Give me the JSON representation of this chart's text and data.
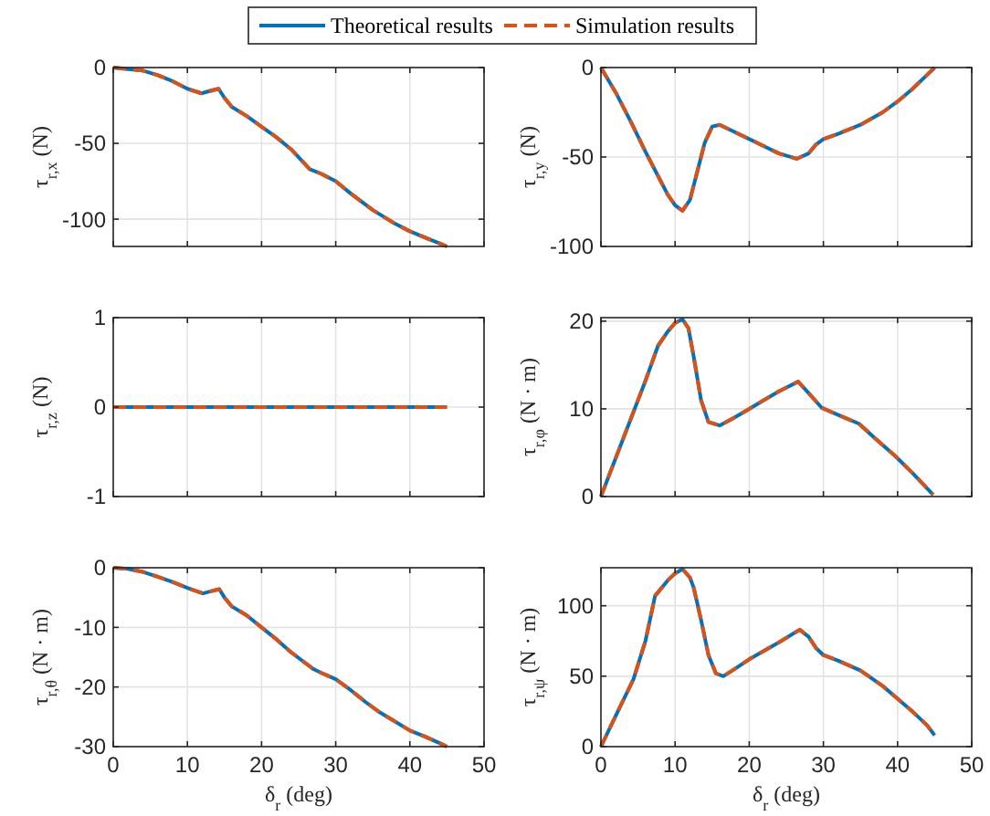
{
  "chart_data": [
    {
      "type": "line",
      "ylabel": "τ$_{r,x}$ (N)",
      "legend": "top",
      "grid": true,
      "tick_labels": "y",
      "xlim": [
        0,
        50
      ],
      "xticks": [
        0,
        10,
        20,
        30,
        40,
        50
      ],
      "ylim": [
        -118,
        0
      ],
      "yticks": [
        -100,
        -50,
        0
      ],
      "marker": "none",
      "x": [
        0,
        2,
        4,
        6,
        8,
        10,
        11.9,
        13,
        14.2,
        15,
        16,
        18,
        20,
        22,
        24,
        26.5,
        28,
        30,
        32,
        35,
        38,
        40,
        42,
        44,
        45
      ],
      "series": [
        {
          "name": "Theoretical results",
          "color": "#0072bd",
          "line_style": "solid",
          "values": [
            0,
            -1,
            -2,
            -5,
            -9,
            -14,
            -17,
            -15.5,
            -14,
            -20,
            -26,
            -32,
            -39,
            -46,
            -54,
            -67,
            -70,
            -75,
            -83,
            -94,
            -103,
            -108,
            -112,
            -116,
            -118
          ]
        },
        {
          "name": "Simulation results",
          "color": "#d95319",
          "line_style": "dashed",
          "values": [
            0,
            -1,
            -2,
            -5,
            -9,
            -14,
            -17,
            -15.5,
            -14,
            -20,
            -26,
            -32,
            -39,
            -46,
            -54,
            -67,
            -70,
            -75,
            -83,
            -94,
            -103,
            -108,
            -112,
            -116,
            -118
          ]
        }
      ]
    },
    {
      "type": "line",
      "ylabel": "τ$_{r,y}$ (N)",
      "grid": true,
      "tick_labels": "y",
      "xlim": [
        0,
        50
      ],
      "xticks": [
        0,
        10,
        20,
        30,
        40,
        50
      ],
      "ylim": [
        -100,
        0
      ],
      "yticks": [
        -100,
        -50,
        0
      ],
      "marker": "none",
      "x": [
        0,
        2,
        4,
        6,
        8,
        9,
        10,
        11,
        12,
        13,
        14,
        15,
        16,
        18,
        20,
        22,
        24,
        26.4,
        28,
        29,
        30,
        32,
        35,
        38,
        40,
        42,
        44,
        45
      ],
      "series": [
        {
          "color": "#0072bd",
          "line_style": "solid",
          "values": [
            0,
            -14,
            -30,
            -47,
            -63,
            -71,
            -77,
            -80,
            -74,
            -58,
            -42,
            -33,
            -32,
            -36,
            -40,
            -44,
            -48,
            -51,
            -48,
            -43,
            -40,
            -37,
            -32,
            -25,
            -19,
            -12,
            -4,
            0
          ]
        },
        {
          "color": "#d95319",
          "line_style": "dashed",
          "values": [
            0,
            -14,
            -30,
            -47,
            -63,
            -71,
            -77,
            -80,
            -74,
            -58,
            -42,
            -33,
            -32,
            -36,
            -40,
            -44,
            -48,
            -51,
            -48,
            -43,
            -40,
            -37,
            -32,
            -25,
            -19,
            -12,
            -4,
            0
          ]
        }
      ]
    },
    {
      "type": "line",
      "ylabel": "τ$_{r,z}$ (N)",
      "grid": true,
      "tick_labels": "y",
      "xlim": [
        0,
        50
      ],
      "xticks": [
        0,
        10,
        20,
        30,
        40,
        50
      ],
      "ylim": [
        -1,
        1
      ],
      "yticks": [
        -1,
        0,
        1
      ],
      "marker": "none",
      "x": [
        0,
        45
      ],
      "series": [
        {
          "color": "#0072bd",
          "line_style": "solid",
          "values": [
            0,
            0
          ]
        },
        {
          "color": "#d95319",
          "line_style": "dashed",
          "values": [
            0,
            0
          ]
        }
      ]
    },
    {
      "type": "line",
      "ylabel": "τ$_{r,φ}$ (N · m)",
      "grid": true,
      "tick_labels": "y",
      "xlim": [
        0,
        50
      ],
      "xticks": [
        0,
        10,
        20,
        30,
        40,
        50
      ],
      "ylim": [
        0,
        20.4
      ],
      "yticks": [
        0,
        10,
        20
      ],
      "marker": "none",
      "x": [
        0,
        2,
        4,
        6,
        7.7,
        9,
        10,
        11,
        11.8,
        12.5,
        13.5,
        14.5,
        16,
        18,
        20,
        22,
        24,
        26.6,
        28,
        29.8,
        32,
        34.8,
        37,
        39.7,
        42,
        44.8
      ],
      "series": [
        {
          "color": "#0072bd",
          "line_style": "solid",
          "values": [
            0,
            4.4,
            8.8,
            13.2,
            17.2,
            18.8,
            19.8,
            20.2,
            19.2,
            16,
            11,
            8.5,
            8.1,
            9,
            10,
            11,
            12,
            13.1,
            11.8,
            10.1,
            9.3,
            8.3,
            6.6,
            4.6,
            2.7,
            0.2
          ]
        },
        {
          "color": "#d95319",
          "line_style": "dashed",
          "values": [
            0,
            4.4,
            8.8,
            13.2,
            17.2,
            18.8,
            19.8,
            20.2,
            19.2,
            16,
            11,
            8.5,
            8.1,
            9,
            10,
            11,
            12,
            13.1,
            11.8,
            10.1,
            9.3,
            8.3,
            6.6,
            4.6,
            2.7,
            0.2
          ]
        }
      ]
    },
    {
      "type": "line",
      "ylabel": "τ$_{r,θ}$ (N · m)",
      "xlabel": "δ$_{r}$ (deg)",
      "grid": true,
      "xlim": [
        0,
        50
      ],
      "xticks": [
        0,
        10,
        20,
        30,
        40,
        50
      ],
      "ylim": [
        -30,
        0
      ],
      "yticks": [
        -30,
        -20,
        -10,
        0
      ],
      "marker": "none",
      "x": [
        0,
        2,
        4,
        6,
        8,
        10,
        12.1,
        13,
        14.3,
        15,
        16,
        18,
        20,
        22,
        24,
        27,
        28,
        30,
        32,
        34,
        36,
        38,
        40,
        42,
        44,
        45
      ],
      "series": [
        {
          "color": "#0072bd",
          "line_style": "solid",
          "values": [
            0,
            -0.2,
            -0.7,
            -1.5,
            -2.4,
            -3.4,
            -4.3,
            -4,
            -3.6,
            -5,
            -6.5,
            -8,
            -10,
            -12,
            -14.2,
            -17,
            -17.6,
            -18.7,
            -20.5,
            -22.5,
            -24.3,
            -25.8,
            -27.3,
            -28.3,
            -29.4,
            -30
          ]
        },
        {
          "color": "#d95319",
          "line_style": "dashed",
          "values": [
            0,
            -0.2,
            -0.7,
            -1.5,
            -2.4,
            -3.4,
            -4.3,
            -4,
            -3.6,
            -5,
            -6.5,
            -8,
            -10,
            -12,
            -14.2,
            -17,
            -17.6,
            -18.7,
            -20.5,
            -22.5,
            -24.3,
            -25.8,
            -27.3,
            -28.3,
            -29.4,
            -30
          ]
        }
      ]
    },
    {
      "type": "line",
      "ylabel": "τ$_{r,ψ}$ (N · m)",
      "xlabel": "δ$_{r}$ (deg)",
      "grid": true,
      "xlim": [
        0,
        50
      ],
      "xticks": [
        0,
        10,
        20,
        30,
        40,
        50
      ],
      "ylim": [
        0,
        127
      ],
      "yticks": [
        0,
        50,
        100
      ],
      "marker": "none",
      "x": [
        0,
        2,
        4.4,
        6,
        7.3,
        9,
        10,
        11,
        12,
        12.5,
        13.5,
        14.5,
        15.5,
        16.5,
        18,
        20,
        22,
        24,
        26.8,
        28,
        29,
        30,
        32,
        35,
        38,
        40,
        42,
        44,
        45
      ],
      "series": [
        {
          "color": "#0072bd",
          "line_style": "solid",
          "values": [
            0,
            22,
            48,
            75,
            107,
            118,
            123,
            126,
            120,
            113,
            90,
            65,
            52,
            50,
            55,
            62,
            68,
            74,
            83,
            78,
            70,
            65,
            61,
            54,
            43,
            34,
            25,
            15,
            8
          ]
        },
        {
          "color": "#d95319",
          "line_style": "dashed",
          "values": [
            0,
            22,
            48,
            75,
            107,
            118,
            123,
            126,
            120,
            113,
            90,
            65,
            52,
            50,
            55,
            62,
            68,
            74,
            83,
            78,
            70,
            65,
            61,
            54,
            43,
            34,
            25,
            15,
            8
          ]
        }
      ]
    }
  ]
}
